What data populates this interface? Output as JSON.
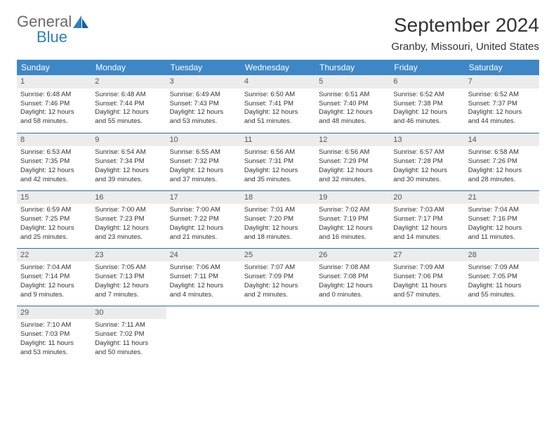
{
  "logo": {
    "text1": "General",
    "text2": "Blue"
  },
  "title": "September 2024",
  "location": "Granby, Missouri, United States",
  "colors": {
    "header_bg": "#3d87c7",
    "header_fg": "#ffffff",
    "rule": "#2f6da3",
    "daynum_bg": "#ececec",
    "logo_blue": "#2f7fbf"
  },
  "weekdays": [
    "Sunday",
    "Monday",
    "Tuesday",
    "Wednesday",
    "Thursday",
    "Friday",
    "Saturday"
  ],
  "weeks": [
    [
      {
        "n": "1",
        "sr": "Sunrise: 6:48 AM",
        "ss": "Sunset: 7:46 PM",
        "d1": "Daylight: 12 hours",
        "d2": "and 58 minutes."
      },
      {
        "n": "2",
        "sr": "Sunrise: 6:48 AM",
        "ss": "Sunset: 7:44 PM",
        "d1": "Daylight: 12 hours",
        "d2": "and 55 minutes."
      },
      {
        "n": "3",
        "sr": "Sunrise: 6:49 AM",
        "ss": "Sunset: 7:43 PM",
        "d1": "Daylight: 12 hours",
        "d2": "and 53 minutes."
      },
      {
        "n": "4",
        "sr": "Sunrise: 6:50 AM",
        "ss": "Sunset: 7:41 PM",
        "d1": "Daylight: 12 hours",
        "d2": "and 51 minutes."
      },
      {
        "n": "5",
        "sr": "Sunrise: 6:51 AM",
        "ss": "Sunset: 7:40 PM",
        "d1": "Daylight: 12 hours",
        "d2": "and 48 minutes."
      },
      {
        "n": "6",
        "sr": "Sunrise: 6:52 AM",
        "ss": "Sunset: 7:38 PM",
        "d1": "Daylight: 12 hours",
        "d2": "and 46 minutes."
      },
      {
        "n": "7",
        "sr": "Sunrise: 6:52 AM",
        "ss": "Sunset: 7:37 PM",
        "d1": "Daylight: 12 hours",
        "d2": "and 44 minutes."
      }
    ],
    [
      {
        "n": "8",
        "sr": "Sunrise: 6:53 AM",
        "ss": "Sunset: 7:35 PM",
        "d1": "Daylight: 12 hours",
        "d2": "and 42 minutes."
      },
      {
        "n": "9",
        "sr": "Sunrise: 6:54 AM",
        "ss": "Sunset: 7:34 PM",
        "d1": "Daylight: 12 hours",
        "d2": "and 39 minutes."
      },
      {
        "n": "10",
        "sr": "Sunrise: 6:55 AM",
        "ss": "Sunset: 7:32 PM",
        "d1": "Daylight: 12 hours",
        "d2": "and 37 minutes."
      },
      {
        "n": "11",
        "sr": "Sunrise: 6:56 AM",
        "ss": "Sunset: 7:31 PM",
        "d1": "Daylight: 12 hours",
        "d2": "and 35 minutes."
      },
      {
        "n": "12",
        "sr": "Sunrise: 6:56 AM",
        "ss": "Sunset: 7:29 PM",
        "d1": "Daylight: 12 hours",
        "d2": "and 32 minutes."
      },
      {
        "n": "13",
        "sr": "Sunrise: 6:57 AM",
        "ss": "Sunset: 7:28 PM",
        "d1": "Daylight: 12 hours",
        "d2": "and 30 minutes."
      },
      {
        "n": "14",
        "sr": "Sunrise: 6:58 AM",
        "ss": "Sunset: 7:26 PM",
        "d1": "Daylight: 12 hours",
        "d2": "and 28 minutes."
      }
    ],
    [
      {
        "n": "15",
        "sr": "Sunrise: 6:59 AM",
        "ss": "Sunset: 7:25 PM",
        "d1": "Daylight: 12 hours",
        "d2": "and 25 minutes."
      },
      {
        "n": "16",
        "sr": "Sunrise: 7:00 AM",
        "ss": "Sunset: 7:23 PM",
        "d1": "Daylight: 12 hours",
        "d2": "and 23 minutes."
      },
      {
        "n": "17",
        "sr": "Sunrise: 7:00 AM",
        "ss": "Sunset: 7:22 PM",
        "d1": "Daylight: 12 hours",
        "d2": "and 21 minutes."
      },
      {
        "n": "18",
        "sr": "Sunrise: 7:01 AM",
        "ss": "Sunset: 7:20 PM",
        "d1": "Daylight: 12 hours",
        "d2": "and 18 minutes."
      },
      {
        "n": "19",
        "sr": "Sunrise: 7:02 AM",
        "ss": "Sunset: 7:19 PM",
        "d1": "Daylight: 12 hours",
        "d2": "and 16 minutes."
      },
      {
        "n": "20",
        "sr": "Sunrise: 7:03 AM",
        "ss": "Sunset: 7:17 PM",
        "d1": "Daylight: 12 hours",
        "d2": "and 14 minutes."
      },
      {
        "n": "21",
        "sr": "Sunrise: 7:04 AM",
        "ss": "Sunset: 7:16 PM",
        "d1": "Daylight: 12 hours",
        "d2": "and 11 minutes."
      }
    ],
    [
      {
        "n": "22",
        "sr": "Sunrise: 7:04 AM",
        "ss": "Sunset: 7:14 PM",
        "d1": "Daylight: 12 hours",
        "d2": "and 9 minutes."
      },
      {
        "n": "23",
        "sr": "Sunrise: 7:05 AM",
        "ss": "Sunset: 7:13 PM",
        "d1": "Daylight: 12 hours",
        "d2": "and 7 minutes."
      },
      {
        "n": "24",
        "sr": "Sunrise: 7:06 AM",
        "ss": "Sunset: 7:11 PM",
        "d1": "Daylight: 12 hours",
        "d2": "and 4 minutes."
      },
      {
        "n": "25",
        "sr": "Sunrise: 7:07 AM",
        "ss": "Sunset: 7:09 PM",
        "d1": "Daylight: 12 hours",
        "d2": "and 2 minutes."
      },
      {
        "n": "26",
        "sr": "Sunrise: 7:08 AM",
        "ss": "Sunset: 7:08 PM",
        "d1": "Daylight: 12 hours",
        "d2": "and 0 minutes."
      },
      {
        "n": "27",
        "sr": "Sunrise: 7:09 AM",
        "ss": "Sunset: 7:06 PM",
        "d1": "Daylight: 11 hours",
        "d2": "and 57 minutes."
      },
      {
        "n": "28",
        "sr": "Sunrise: 7:09 AM",
        "ss": "Sunset: 7:05 PM",
        "d1": "Daylight: 11 hours",
        "d2": "and 55 minutes."
      }
    ],
    [
      {
        "n": "29",
        "sr": "Sunrise: 7:10 AM",
        "ss": "Sunset: 7:03 PM",
        "d1": "Daylight: 11 hours",
        "d2": "and 53 minutes."
      },
      {
        "n": "30",
        "sr": "Sunrise: 7:11 AM",
        "ss": "Sunset: 7:02 PM",
        "d1": "Daylight: 11 hours",
        "d2": "and 50 minutes."
      },
      null,
      null,
      null,
      null,
      null
    ]
  ]
}
